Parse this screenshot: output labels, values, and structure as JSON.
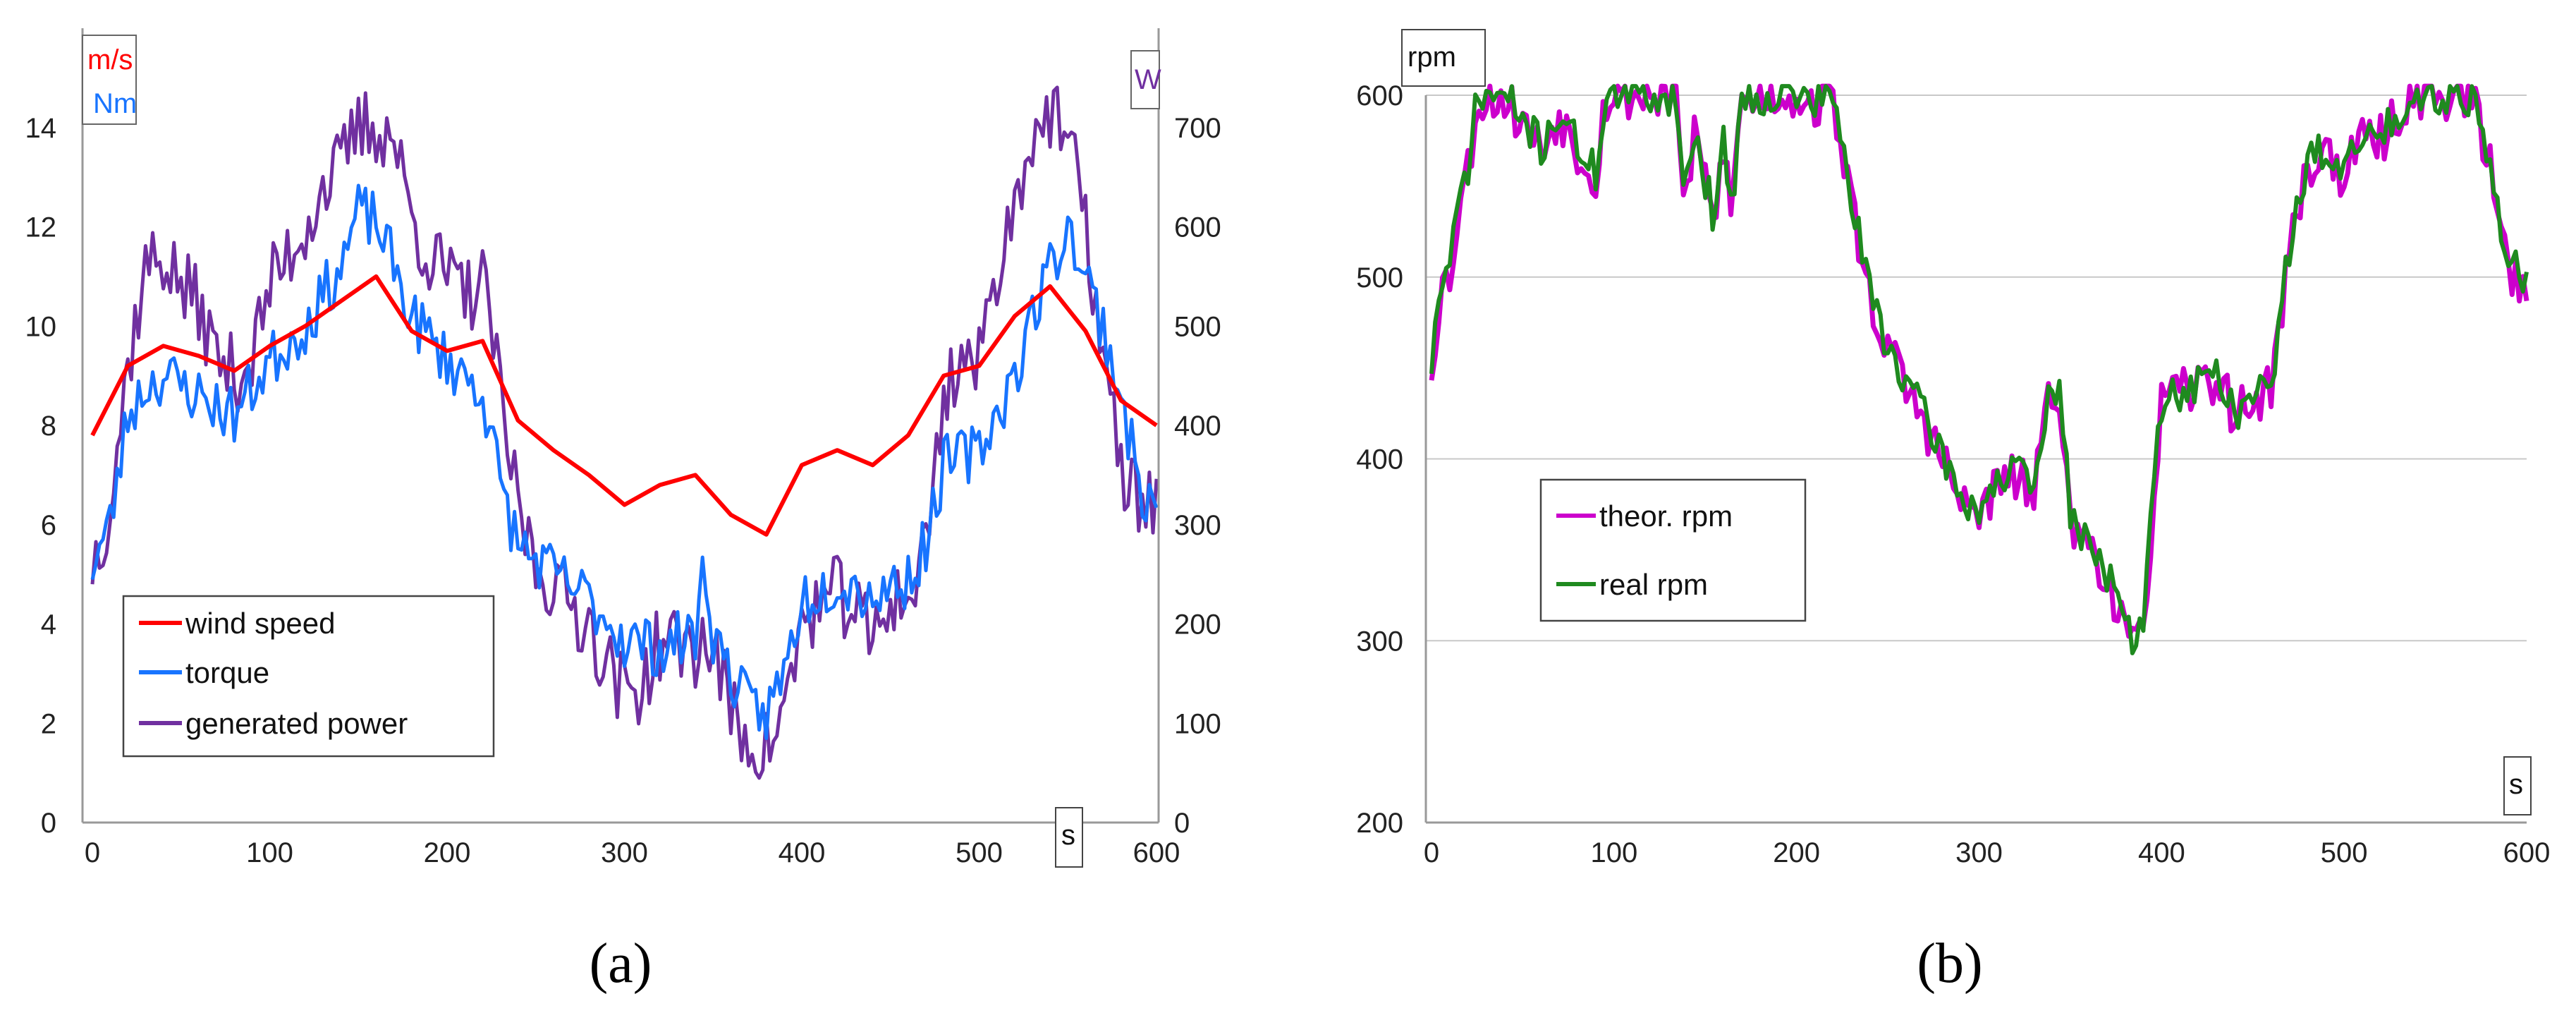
{
  "chart_data": [
    {
      "type": "line",
      "panel_label": "(a)",
      "x_unit": "s",
      "xlim": [
        0,
        600
      ],
      "x_ticks": [
        "0",
        "100",
        "200",
        "300",
        "400",
        "500",
        "600"
      ],
      "y_left_units": [
        {
          "text": "m/s",
          "color": "#ff0000"
        },
        {
          "text": "Nm",
          "color": "#1874ff"
        }
      ],
      "ylim_left": [
        0,
        16
      ],
      "y_left_ticks": [
        "0",
        "2",
        "4",
        "6",
        "8",
        "10",
        "12",
        "14"
      ],
      "y_right_unit": {
        "text": "W",
        "color": "#7030a0"
      },
      "ylim_right": [
        0,
        800
      ],
      "y_right_ticks": [
        "0",
        "100",
        "200",
        "300",
        "400",
        "500",
        "600",
        "700"
      ],
      "grid": false,
      "legend_position": "bottom-left",
      "series": [
        {
          "name": "wind speed",
          "color": "#ff0000",
          "axis": "left",
          "noise": 0,
          "x": [
            0,
            20,
            40,
            60,
            80,
            100,
            120,
            140,
            160,
            180,
            200,
            220,
            240,
            260,
            280,
            300,
            320,
            340,
            360,
            380,
            400,
            420,
            440,
            460,
            480,
            500,
            520,
            540,
            560,
            580,
            600
          ],
          "y": [
            7.8,
            9.2,
            9.6,
            9.4,
            9.1,
            9.6,
            10.0,
            10.5,
            11.0,
            9.9,
            9.5,
            9.7,
            8.1,
            7.5,
            7.0,
            6.4,
            6.8,
            7.0,
            6.2,
            5.8,
            7.2,
            7.5,
            7.2,
            7.8,
            9.0,
            9.2,
            10.2,
            10.8,
            9.9,
            8.5,
            8.0
          ]
        },
        {
          "name": "torque",
          "color": "#1874ff",
          "axis": "left",
          "noise": 0.6,
          "x": [
            0,
            10,
            20,
            30,
            40,
            60,
            80,
            100,
            120,
            140,
            150,
            160,
            170,
            180,
            200,
            220,
            230,
            240,
            260,
            280,
            300,
            320,
            340,
            345,
            350,
            360,
            370,
            380,
            390,
            400,
            420,
            440,
            460,
            470,
            480,
            500,
            520,
            530,
            540,
            550,
            560,
            570,
            580,
            590,
            600
          ],
          "y": [
            5.2,
            6.0,
            8.2,
            8.8,
            9.0,
            8.6,
            8.2,
            9.3,
            10.0,
            11.2,
            12.3,
            12.1,
            11.2,
            10.2,
            9.3,
            8.7,
            6.8,
            5.6,
            5.0,
            4.5,
            3.7,
            3.5,
            3.8,
            5.2,
            3.8,
            3.0,
            2.3,
            2.2,
            3.0,
            4.5,
            4.9,
            4.6,
            4.9,
            5.6,
            7.2,
            7.5,
            9.0,
            10.2,
            11.2,
            12.0,
            11.0,
            10.0,
            8.6,
            6.8,
            6.2
          ]
        },
        {
          "name": "generated power",
          "color": "#7030a0",
          "axis": "right",
          "noise": 40,
          "x": [
            0,
            10,
            20,
            30,
            40,
            50,
            60,
            70,
            80,
            90,
            100,
            110,
            120,
            130,
            140,
            150,
            160,
            170,
            180,
            190,
            200,
            210,
            220,
            225,
            230,
            240,
            250,
            260,
            270,
            280,
            290,
            300,
            310,
            320,
            330,
            340,
            350,
            360,
            370,
            380,
            390,
            400,
            410,
            420,
            430,
            440,
            450,
            460,
            470,
            480,
            490,
            500,
            510,
            520,
            530,
            540,
            550,
            560,
            570,
            580,
            590,
            600
          ],
          "y": [
            260,
            320,
            460,
            560,
            570,
            540,
            520,
            470,
            450,
            470,
            540,
            570,
            600,
            640,
            660,
            700,
            700,
            690,
            610,
            570,
            550,
            530,
            540,
            510,
            420,
            320,
            260,
            240,
            220,
            200,
            160,
            130,
            140,
            180,
            180,
            175,
            180,
            110,
            80,
            75,
            110,
            200,
            220,
            230,
            215,
            180,
            230,
            220,
            280,
            430,
            470,
            460,
            560,
            620,
            700,
            710,
            690,
            600,
            470,
            350,
            330,
            320
          ]
        }
      ]
    },
    {
      "type": "line",
      "panel_label": "(b)",
      "x_unit": "s",
      "xlim": [
        0,
        600
      ],
      "x_ticks": [
        "0",
        "100",
        "200",
        "300",
        "400",
        "500",
        "600"
      ],
      "y_unit": "rpm",
      "ylim": [
        200,
        600
      ],
      "y_ticks": [
        "200",
        "300",
        "400",
        "500",
        "600"
      ],
      "grid": true,
      "legend_position": "middle-left",
      "series": [
        {
          "name": "theor. rpm",
          "color": "#cc00cc",
          "noise": 14,
          "x": [
            0,
            5,
            10,
            15,
            20,
            25,
            30,
            40,
            50,
            60,
            70,
            80,
            90,
            95,
            100,
            110,
            120,
            130,
            135,
            138,
            145,
            150,
            155,
            160,
            165,
            170,
            175,
            180,
            190,
            200,
            210,
            220,
            230,
            240,
            250,
            260,
            270,
            280,
            290,
            300,
            310,
            320,
            330,
            340,
            345,
            350,
            360,
            370,
            380,
            385,
            390,
            400,
            410,
            420,
            430,
            440,
            450,
            460,
            470,
            480,
            490,
            500,
            510,
            520,
            530,
            540,
            550,
            560,
            570,
            575,
            580,
            590,
            600
          ],
          "y": [
            450,
            495,
            500,
            540,
            560,
            595,
            600,
            598,
            585,
            570,
            590,
            570,
            555,
            598,
            600,
            600,
            600,
            600,
            600,
            540,
            580,
            550,
            530,
            570,
            540,
            600,
            595,
            600,
            600,
            600,
            595,
            600,
            540,
            490,
            460,
            440,
            420,
            400,
            375,
            370,
            385,
            390,
            380,
            440,
            435,
            360,
            355,
            335,
            305,
            290,
            310,
            430,
            435,
            440,
            445,
            425,
            430,
            440,
            515,
            560,
            570,
            555,
            575,
            575,
            590,
            600,
            600,
            600,
            600,
            580,
            560,
            505,
            495
          ]
        },
        {
          "name": "real rpm",
          "color": "#1f8a1f",
          "noise": 11,
          "x": [
            0,
            5,
            10,
            15,
            20,
            25,
            30,
            40,
            50,
            60,
            70,
            80,
            90,
            95,
            100,
            110,
            120,
            130,
            135,
            138,
            145,
            150,
            155,
            160,
            165,
            170,
            175,
            180,
            190,
            200,
            210,
            220,
            230,
            240,
            250,
            260,
            270,
            280,
            290,
            300,
            310,
            320,
            330,
            340,
            345,
            350,
            360,
            370,
            380,
            385,
            390,
            400,
            410,
            420,
            430,
            440,
            450,
            460,
            470,
            480,
            490,
            500,
            510,
            520,
            530,
            540,
            550,
            560,
            570,
            575,
            580,
            590,
            600
          ],
          "y": [
            452,
            498,
            502,
            542,
            562,
            597,
            600,
            599,
            587,
            572,
            591,
            572,
            557,
            599,
            600,
            600,
            600,
            600,
            602,
            545,
            582,
            552,
            533,
            572,
            543,
            602,
            596,
            600,
            600,
            600,
            596,
            600,
            543,
            493,
            463,
            443,
            423,
            403,
            378,
            373,
            388,
            393,
            383,
            442,
            437,
            363,
            358,
            338,
            310,
            295,
            315,
            432,
            437,
            442,
            447,
            427,
            432,
            442,
            517,
            562,
            572,
            557,
            577,
            577,
            592,
            601,
            600,
            600,
            600,
            582,
            562,
            508,
            497
          ]
        }
      ]
    }
  ]
}
